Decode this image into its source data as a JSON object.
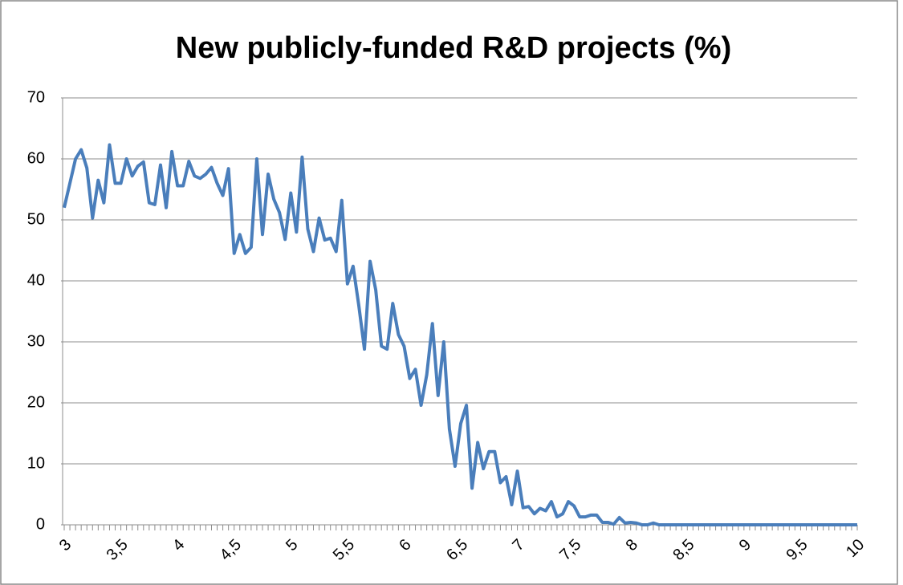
{
  "chart_data": {
    "type": "line",
    "title": "New publicly-funded R&D projects (%)",
    "categories": [
      "3",
      null,
      null,
      null,
      null,
      null,
      null,
      null,
      null,
      null,
      "3,5",
      null,
      null,
      null,
      null,
      null,
      null,
      null,
      null,
      null,
      "4",
      null,
      null,
      null,
      null,
      null,
      null,
      null,
      null,
      null,
      "4,5",
      null,
      null,
      null,
      null,
      null,
      null,
      null,
      null,
      null,
      "5",
      null,
      null,
      null,
      null,
      null,
      null,
      null,
      null,
      null,
      "5,5",
      null,
      null,
      null,
      null,
      null,
      null,
      null,
      null,
      null,
      "6",
      null,
      null,
      null,
      null,
      null,
      null,
      null,
      null,
      null,
      "6,5",
      null,
      null,
      null,
      null,
      null,
      null,
      null,
      null,
      null,
      "7",
      null,
      null,
      null,
      null,
      null,
      null,
      null,
      null,
      null,
      "7,5",
      null,
      null,
      null,
      null,
      null,
      null,
      null,
      null,
      null,
      "8",
      null,
      null,
      null,
      null,
      null,
      null,
      null,
      null,
      null,
      "8,5",
      null,
      null,
      null,
      null,
      null,
      null,
      null,
      null,
      null,
      "9",
      null,
      null,
      null,
      null,
      null,
      null,
      null,
      null,
      null,
      "9,5",
      null,
      null,
      null,
      null,
      null,
      null,
      null,
      null,
      null,
      "10"
    ],
    "series": [
      {
        "name": "New publicly-funded R&D projects (%)",
        "color": "#4a7ebb",
        "values": [
          52,
          56,
          60,
          61.5,
          58.5,
          50.3,
          56.5,
          52.8,
          62.3,
          56,
          56,
          60,
          57.2,
          58.8,
          59.5,
          52.8,
          52.5,
          59,
          52,
          61.2,
          55.6,
          55.6,
          59.6,
          57.2,
          56.8,
          57.5,
          58.6,
          56,
          54,
          58.4,
          44.5,
          47.6,
          44.5,
          45.5,
          60,
          47.6,
          57.5,
          53.4,
          51.2,
          46.8,
          54.4,
          48,
          60.3,
          48.5,
          44.8,
          50.3,
          46.7,
          47,
          44.8,
          53.2,
          39.5,
          42.4,
          36,
          28.8,
          43.2,
          38.5,
          29.3,
          28.8,
          36.3,
          31.2,
          29.3,
          24,
          25.5,
          19.6,
          24.6,
          33,
          21.2,
          30,
          15.7,
          9.6,
          16.6,
          19.6,
          6,
          13.5,
          9.2,
          12,
          12,
          6.9,
          7.9,
          3.3,
          8.8,
          2.8,
          3,
          1.8,
          2.7,
          2.3,
          3.8,
          1.3,
          1.8,
          3.8,
          3.1,
          1.3,
          1.3,
          1.6,
          1.6,
          0.4,
          0.4,
          0.1,
          1.2,
          0.3,
          0.4,
          0.3,
          0,
          0,
          0.3,
          0,
          0,
          0,
          0,
          0,
          0,
          0,
          0,
          0,
          0,
          0,
          0,
          0,
          0,
          0,
          0,
          0,
          0,
          0,
          0,
          0,
          0,
          0,
          0,
          0,
          0,
          0,
          0,
          0,
          0,
          0,
          0,
          0,
          0,
          0,
          0
        ]
      }
    ],
    "ylim": [
      0,
      70
    ],
    "yticks": [
      0,
      10,
      20,
      30,
      40,
      50,
      60,
      70
    ],
    "grid": true
  }
}
